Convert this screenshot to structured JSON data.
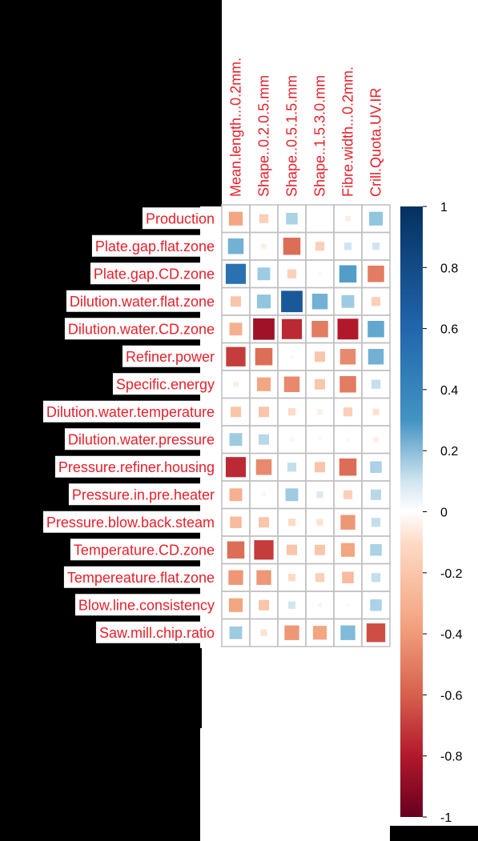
{
  "chart_data": {
    "type": "heatmap",
    "rows": [
      "Production",
      "Plate.gap.flat.zone",
      "Plate.gap.CD.zone",
      "Dilution.water.flat.zone",
      "Dilution.water.CD.zone",
      "Refiner.power",
      "Specific.energy",
      "Dilution.water.temperature",
      "Dilution.water.pressure",
      "Pressure.refiner.housing",
      "Pressure.in.pre.heater",
      "Pressure.blow.back.steam",
      "Temperature.CD.zone",
      "Tempereature.flat.zone",
      "Blow.line.consistency",
      "Saw.mill.chip.ratio"
    ],
    "columns": [
      "Mean.length...0.2mm.",
      "Shape..0.2.0.5.mm",
      "Shape..0.5.1.5.mm",
      "Shape..1.5.3.0.mm",
      "Fibre.width...0.2mm.",
      "Crill.Quota.UV.IR"
    ],
    "values": [
      [
        -0.35,
        -0.15,
        0.25,
        0.0,
        -0.05,
        0.35
      ],
      [
        0.45,
        -0.05,
        -0.55,
        -0.15,
        0.1,
        0.1
      ],
      [
        0.75,
        0.3,
        -0.15,
        0.02,
        0.55,
        -0.5
      ],
      [
        -0.2,
        0.35,
        0.85,
        0.45,
        0.3,
        -0.15
      ],
      [
        -0.3,
        -0.85,
        -0.75,
        -0.5,
        -0.8,
        0.5
      ],
      [
        -0.7,
        -0.55,
        0.02,
        -0.2,
        -0.45,
        0.45
      ],
      [
        -0.05,
        -0.35,
        -0.45,
        -0.2,
        -0.5,
        0.15
      ],
      [
        -0.2,
        -0.2,
        -0.1,
        -0.05,
        -0.15,
        -0.08
      ],
      [
        0.3,
        0.2,
        -0.03,
        0.02,
        0.02,
        -0.05
      ],
      [
        -0.75,
        -0.45,
        0.15,
        -0.2,
        -0.55,
        0.25
      ],
      [
        -0.3,
        -0.03,
        0.3,
        0.08,
        -0.15,
        0.2
      ],
      [
        -0.25,
        -0.2,
        -0.1,
        -0.08,
        -0.4,
        0.15
      ],
      [
        -0.55,
        -0.7,
        -0.2,
        -0.2,
        -0.35,
        0.25
      ],
      [
        -0.4,
        -0.4,
        -0.1,
        -0.15,
        -0.25,
        0.15
      ],
      [
        -0.35,
        -0.2,
        0.1,
        0.03,
        -0.02,
        0.25
      ],
      [
        0.3,
        -0.08,
        -0.4,
        -0.35,
        0.4,
        -0.65
      ]
    ],
    "colorbar": {
      "min": -1,
      "max": 1,
      "ticks": [
        "1",
        "0.8",
        "0.6",
        "0.4",
        "0.2",
        "0",
        "-0.2",
        "-0.4",
        "-0.6",
        "-0.8",
        "-1"
      ]
    },
    "colors": {
      "negative_strong": "#67001f",
      "negative_mid": "#d6604d",
      "negative_light": "#fddbc7",
      "neutral": "#ffffff",
      "positive_light": "#d1e5f0",
      "positive_mid": "#4393c3",
      "positive_strong": "#053061",
      "label": "#e8202a"
    }
  }
}
